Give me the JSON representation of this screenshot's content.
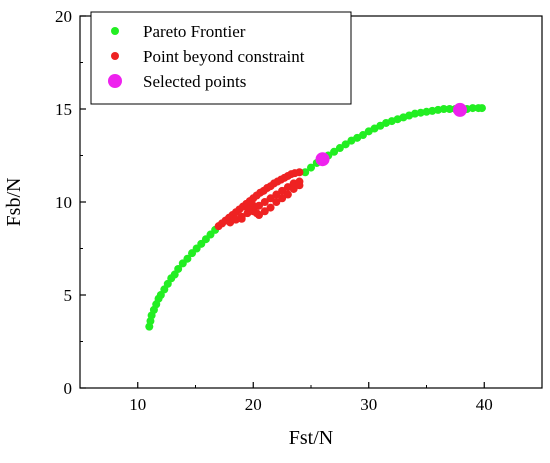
{
  "chart_data": {
    "type": "scatter",
    "xlabel": "Fst/N",
    "ylabel": "Fsb/N",
    "xlim": [
      5,
      45
    ],
    "ylim": [
      0,
      20
    ],
    "x_ticks": [
      10,
      20,
      30,
      40
    ],
    "y_ticks": [
      0,
      5,
      10,
      15,
      20
    ],
    "grid": false,
    "legend_position": "top-left",
    "series": [
      {
        "name": "Pareto Frontier",
        "color": "#22ee22",
        "marker": "circle",
        "points": [
          [
            11.0,
            3.3
          ],
          [
            11.1,
            3.6
          ],
          [
            11.2,
            3.9
          ],
          [
            11.4,
            4.2
          ],
          [
            11.6,
            4.5
          ],
          [
            11.8,
            4.8
          ],
          [
            12.0,
            5.0
          ],
          [
            12.3,
            5.3
          ],
          [
            12.6,
            5.6
          ],
          [
            12.9,
            5.9
          ],
          [
            13.2,
            6.1
          ],
          [
            13.5,
            6.4
          ],
          [
            13.9,
            6.7
          ],
          [
            14.3,
            6.95
          ],
          [
            14.7,
            7.25
          ],
          [
            15.1,
            7.5
          ],
          [
            15.5,
            7.75
          ],
          [
            15.9,
            8.0
          ],
          [
            16.3,
            8.25
          ],
          [
            16.7,
            8.5
          ],
          [
            24.5,
            11.6
          ],
          [
            25.0,
            11.85
          ],
          [
            25.5,
            12.1
          ],
          [
            26.5,
            12.5
          ],
          [
            27.0,
            12.7
          ],
          [
            27.5,
            12.9
          ],
          [
            28.0,
            13.1
          ],
          [
            28.5,
            13.3
          ],
          [
            29.0,
            13.45
          ],
          [
            29.5,
            13.6
          ],
          [
            30.0,
            13.8
          ],
          [
            30.5,
            13.95
          ],
          [
            31.0,
            14.1
          ],
          [
            31.5,
            14.25
          ],
          [
            32.0,
            14.35
          ],
          [
            32.5,
            14.45
          ],
          [
            33.0,
            14.55
          ],
          [
            33.5,
            14.65
          ],
          [
            34.0,
            14.75
          ],
          [
            34.5,
            14.8
          ],
          [
            35.0,
            14.85
          ],
          [
            35.5,
            14.9
          ],
          [
            36.0,
            14.95
          ],
          [
            36.5,
            15.0
          ],
          [
            37.0,
            15.0
          ],
          [
            37.5,
            15.0
          ],
          [
            38.5,
            15.0
          ],
          [
            39.0,
            15.05
          ],
          [
            39.5,
            15.05
          ],
          [
            39.8,
            15.05
          ]
        ]
      },
      {
        "name": "Point beyond constraint",
        "color": "#ee2222",
        "marker": "circle",
        "points": [
          [
            17.0,
            8.7
          ],
          [
            17.3,
            8.85
          ],
          [
            17.6,
            9.0
          ],
          [
            17.9,
            9.15
          ],
          [
            18.2,
            9.3
          ],
          [
            18.5,
            9.45
          ],
          [
            18.8,
            9.6
          ],
          [
            19.1,
            9.75
          ],
          [
            19.4,
            9.9
          ],
          [
            19.7,
            10.05
          ],
          [
            20.0,
            10.2
          ],
          [
            20.3,
            10.35
          ],
          [
            20.6,
            10.5
          ],
          [
            20.9,
            10.6
          ],
          [
            21.2,
            10.75
          ],
          [
            21.5,
            10.85
          ],
          [
            21.8,
            11.0
          ],
          [
            22.1,
            11.1
          ],
          [
            22.4,
            11.2
          ],
          [
            22.7,
            11.3
          ],
          [
            23.0,
            11.4
          ],
          [
            23.3,
            11.5
          ],
          [
            23.6,
            11.55
          ],
          [
            24.0,
            11.6
          ],
          [
            18.0,
            8.9
          ],
          [
            18.5,
            9.05
          ],
          [
            19.0,
            9.2
          ],
          [
            19.5,
            9.4
          ],
          [
            20.0,
            9.6
          ],
          [
            20.5,
            9.8
          ],
          [
            21.0,
            10.0
          ],
          [
            21.5,
            10.2
          ],
          [
            22.0,
            10.4
          ],
          [
            22.5,
            10.6
          ],
          [
            23.0,
            10.8
          ],
          [
            23.5,
            11.0
          ],
          [
            24.0,
            11.1
          ],
          [
            19.0,
            9.1
          ],
          [
            20.0,
            9.5
          ],
          [
            20.5,
            9.3
          ],
          [
            21.0,
            9.5
          ],
          [
            21.5,
            9.7
          ],
          [
            22.0,
            10.0
          ],
          [
            22.5,
            10.2
          ],
          [
            23.0,
            10.4
          ],
          [
            23.5,
            10.7
          ],
          [
            24.0,
            10.9
          ],
          [
            20.0,
            9.8
          ],
          [
            20.3,
            9.4
          ],
          [
            19.6,
            9.6
          ]
        ]
      },
      {
        "name": "Selected points",
        "color": "#ee22ee",
        "marker": "circle-large",
        "points": [
          [
            26.0,
            12.3
          ],
          [
            37.9,
            14.95
          ]
        ]
      }
    ]
  }
}
